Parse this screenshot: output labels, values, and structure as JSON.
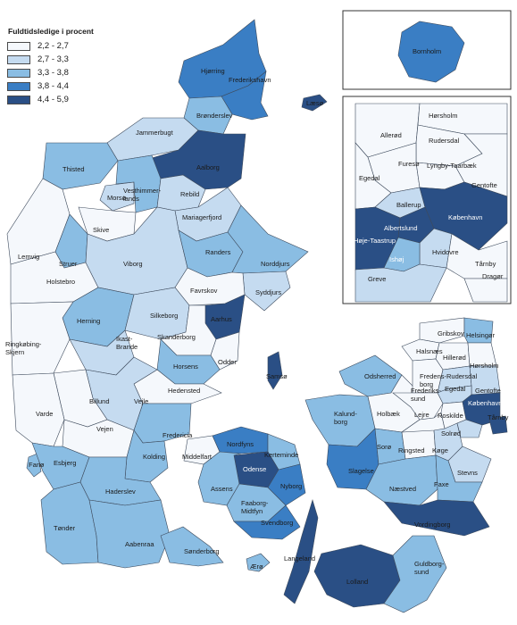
{
  "legend": {
    "title": "Fuldtidsledige i procent",
    "classes": [
      {
        "label": "2,2 - 2,7",
        "color": "#f5f8fc"
      },
      {
        "label": "2,7 - 3,3",
        "color": "#c5dbf0"
      },
      {
        "label": "3,3 - 3,8",
        "color": "#8abde3"
      },
      {
        "label": "3,8 - 4,4",
        "color": "#3a7ec4"
      },
      {
        "label": "4,4 - 5,9",
        "color": "#2a4f85"
      }
    ]
  },
  "labels": {
    "bornholm": "Bornholm",
    "hjorring": "Hjørring",
    "frederikshavn": "Frederikshavn",
    "laeso": "Læsø",
    "bronderslev": "Brønderslev",
    "jammerbugt": "Jammerbugt",
    "thisted": "Thisted",
    "aalborg": "Aalborg",
    "morso": "Morsø",
    "vesthimmerlands": "Vesthimmer-\nlands",
    "rebild": "Rebild",
    "mariagerfjord": "Mariagerfjord",
    "skive": "Skive",
    "lemvig": "Lemvig",
    "struer": "Struer",
    "holstebro": "Holstebro",
    "viborg": "Viborg",
    "randers": "Randers",
    "norddjurs": "Norddjurs",
    "syddjurs": "Syddjurs",
    "favrskov": "Favrskov",
    "herning": "Herning",
    "silkeborg": "Silkeborg",
    "aarhus": "Aarhus",
    "skanderborg": "Skanderborg",
    "odder": "Odder",
    "samso": "Samsø",
    "ringkobing": "Ringkøbing-\nSkjern",
    "ikast": "Ikast-\nBrande",
    "horsens": "Horsens",
    "hedensted": "Hedensted",
    "vejle": "Vejle",
    "billund": "Billund",
    "varde": "Varde",
    "vejen": "Vejen",
    "fredericia": "Fredericia",
    "kolding": "Kolding",
    "middelfart": "Middelfart",
    "fano": "Fanø",
    "esbjerg": "Esbjerg",
    "haderslev": "Haderslev",
    "tonder": "Tønder",
    "aabenraa": "Aabenraa",
    "sonderborg": "Sønderborg",
    "nordfyns": "Nordfyns",
    "kerteminde": "Kerteminde",
    "odense": "Odense",
    "assens": "Assens",
    "nyborg": "Nyborg",
    "faaborg": "Faaborg-\nMidtfyn",
    "svendborg": "Svendborg",
    "langeland": "Langeland",
    "aero": "Ærø",
    "odsherred": "Odsherred",
    "kalundborg": "Kalund-\nborg",
    "holbaek": "Holbæk",
    "slagelse": "Slagelse",
    "soro": "Sorø",
    "ringsted": "Ringsted",
    "koge": "Køge",
    "stevns": "Stevns",
    "naestved": "Næstved",
    "faxe": "Faxe",
    "vordingborg": "Vordingborg",
    "lolland": "Lolland",
    "guldborgsund": "Guldborg-\nsund",
    "gribskov": "Gribskov",
    "helsingor": "Helsingør",
    "halsnaes": "Halsnæs",
    "hillerod": "Hillerød",
    "horsholm_m": "Hørsholm",
    "fredensborg_m": "Fredens-\nborg",
    "rudersdal_m": "Rudersdal",
    "egedal_m": "Egedal",
    "gentofte_m": "Gentofte",
    "frederikssund_m": "Frederiks-\nsund",
    "lejre": "Lejre",
    "kobenhavn_m": "København",
    "roskilde": "Roskilde",
    "solrod": "Solrød",
    "taarnby_m": "Tårnby",
    "furesø": "Furesø",
    "allerod": "Allerød",
    "horsholm": "Hørsholm",
    "rudersdal": "Rudersdal",
    "egedal": "Egedal",
    "lyngby": "Lyngby-Taarbæk",
    "gentofte": "Gentofte",
    "ballerup": "Ballerup",
    "kobenhavn": "København",
    "albertslund": "Albertslund",
    "hoje_taastrup": "Høje-Taastrup",
    "hvidovre": "Hvidovre",
    "ishoj": "Ishøj",
    "taarnby": "Tårnby",
    "greve": "Greve",
    "dragor": "Dragør"
  }
}
